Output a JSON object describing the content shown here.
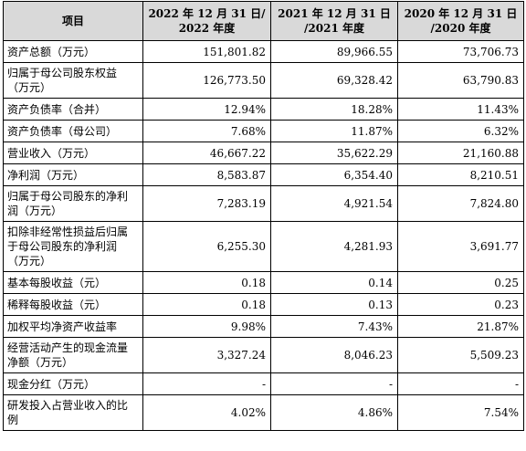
{
  "table": {
    "headers": [
      "项目",
      "2022 年 12 月 31 日/\n2022 年度",
      "2021 年 12 月 31 日\n/2021 年度",
      "2020 年 12 月 31 日\n/2020 年度"
    ],
    "rows": [
      {
        "label": "资产总额（万元）",
        "values": [
          "151,801.82",
          "89,966.55",
          "73,706.73"
        ]
      },
      {
        "label": "归属于母公司股东权益（万元）",
        "values": [
          "126,773.50",
          "69,328.42",
          "63,790.83"
        ]
      },
      {
        "label": "资产负债率（合并）",
        "values": [
          "12.94%",
          "18.28%",
          "11.43%"
        ]
      },
      {
        "label": "资产负债率（母公司）",
        "values": [
          "7.68%",
          "11.87%",
          "6.32%"
        ]
      },
      {
        "label": "营业收入（万元）",
        "values": [
          "46,667.22",
          "35,622.29",
          "21,160.88"
        ]
      },
      {
        "label": "净利润（万元）",
        "values": [
          "8,583.87",
          "6,354.40",
          "8,210.51"
        ]
      },
      {
        "label": "归属于母公司股东的净利润（万元）",
        "values": [
          "7,283.19",
          "4,921.54",
          "7,824.80"
        ]
      },
      {
        "label": "扣除非经常性损益后归属于母公司股东的净利润（万元）",
        "values": [
          "6,255.30",
          "4,281.93",
          "3,691.77"
        ]
      },
      {
        "label": "基本每股收益（元）",
        "values": [
          "0.18",
          "0.14",
          "0.25"
        ]
      },
      {
        "label": "稀释每股收益（元）",
        "values": [
          "0.18",
          "0.13",
          "0.23"
        ]
      },
      {
        "label": "加权平均净资产收益率",
        "values": [
          "9.98%",
          "7.43%",
          "21.87%"
        ]
      },
      {
        "label": "经营活动产生的现金流量净额（万元）",
        "values": [
          "3,327.24",
          "8,046.23",
          "5,509.23"
        ]
      },
      {
        "label": "现金分红（万元）",
        "values": [
          "-",
          "-",
          "-"
        ]
      },
      {
        "label": "研发投入占营业收入的比例",
        "values": [
          "4.02%",
          "4.86%",
          "7.54%"
        ]
      }
    ]
  }
}
